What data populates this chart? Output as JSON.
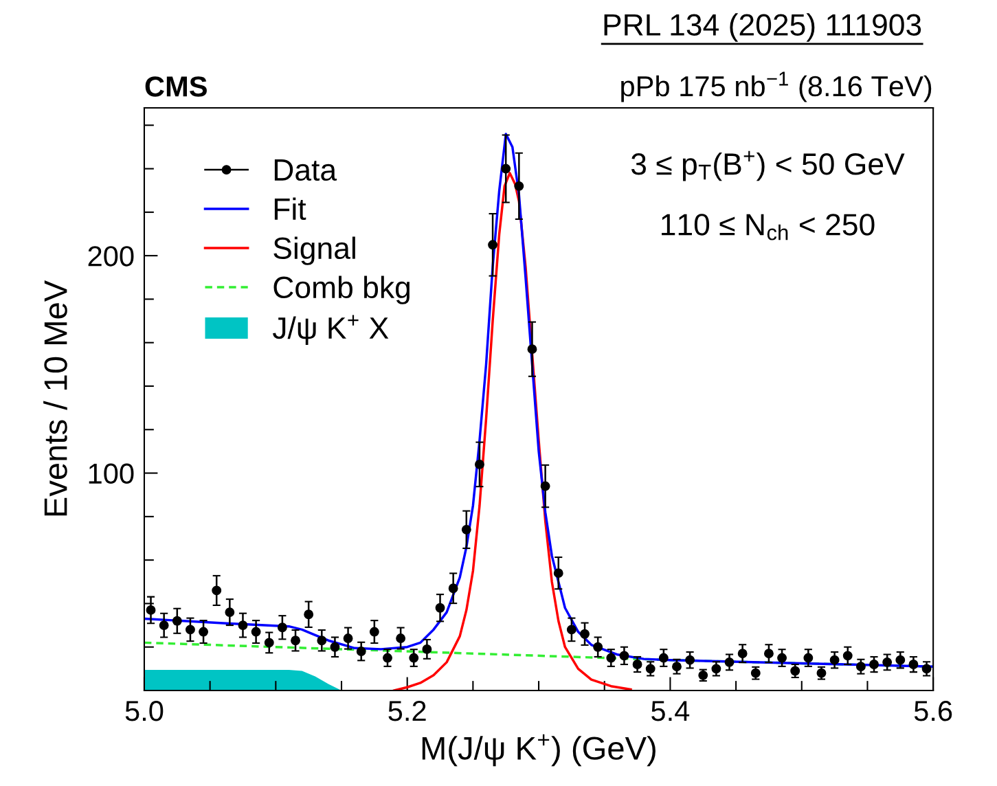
{
  "chart_data": {
    "type": "scatter",
    "title": "CMS",
    "subtitle": "pPb 175 nb$^{−1}$ (8.16 TeV)",
    "xlabel": "M(J/ψ K$^{+}$) (GeV)",
    "ylabel": "Events / 10 MeV",
    "annotations": [
      "PRL 134 (2025) 111903",
      "3 ≤ p$_{T}$(B$^{+}$) < 50 GeV",
      "110 ≤ N$_{ch}$ < 250"
    ],
    "xlim": [
      5.0,
      5.6
    ],
    "ylim": [
      0,
      268
    ],
    "xticks": [
      {
        "value": 5.0,
        "label": "5.0"
      },
      {
        "value": 5.05,
        "label": null
      },
      {
        "value": 5.1,
        "label": null
      },
      {
        "value": 5.15,
        "label": null
      },
      {
        "value": 5.2,
        "label": "5.2"
      },
      {
        "value": 5.25,
        "label": null
      },
      {
        "value": 5.3,
        "label": null
      },
      {
        "value": 5.35,
        "label": null
      },
      {
        "value": 5.4,
        "label": "5.4"
      },
      {
        "value": 5.45,
        "label": null
      },
      {
        "value": 5.5,
        "label": null
      },
      {
        "value": 5.55,
        "label": null
      },
      {
        "value": 5.6,
        "label": "5.6"
      }
    ],
    "yticks": [
      {
        "value": 20,
        "label": null
      },
      {
        "value": 40,
        "label": null
      },
      {
        "value": 60,
        "label": null
      },
      {
        "value": 80,
        "label": null
      },
      100,
      {
        "value": 120,
        "label": null
      },
      {
        "value": 140,
        "label": null
      },
      {
        "value": 160,
        "label": null
      },
      {
        "value": 180,
        "label": null
      },
      200,
      {
        "value": 220,
        "label": null
      },
      {
        "value": 240,
        "label": null
      },
      {
        "value": 260,
        "label": null
      }
    ],
    "grid": false,
    "legend": "top left",
    "series": [
      {
        "name": "J/ψ K$^{+}$ X",
        "type": "area",
        "color": "#00c4c4",
        "x": [
          5.0,
          5.05,
          5.1,
          5.11,
          5.12,
          5.13,
          5.14,
          5.15
        ],
        "values": [
          9.5,
          9.5,
          9.5,
          9.5,
          9,
          6.5,
          3,
          0
        ]
      },
      {
        "name": "Comb bkg",
        "type": "line",
        "color": "#33ee33",
        "line_style": "dashed",
        "x": [
          5.0,
          5.2,
          5.4,
          5.6
        ],
        "values": [
          22,
          18,
          14,
          11
        ]
      },
      {
        "name": "Signal",
        "type": "line",
        "color": "#ff0000",
        "x": [
          5.19,
          5.2,
          5.21,
          5.22,
          5.23,
          5.24,
          5.245,
          5.25,
          5.255,
          5.26,
          5.265,
          5.27,
          5.274,
          5.278,
          5.282,
          5.285,
          5.29,
          5.295,
          5.3,
          5.305,
          5.31,
          5.315,
          5.32,
          5.33,
          5.34,
          5.355,
          5.37
        ],
        "values": [
          0,
          1.5,
          3.5,
          7,
          13,
          25,
          37,
          55,
          85,
          125,
          170,
          210,
          232,
          238,
          233,
          225,
          195,
          155,
          115,
          78,
          50,
          32,
          20,
          10,
          5,
          2,
          0.5
        ]
      },
      {
        "name": "Fit",
        "type": "line",
        "color": "#0000ff",
        "x": [
          5.0,
          5.06,
          5.11,
          5.12,
          5.13,
          5.14,
          5.16,
          5.18,
          5.2,
          5.21,
          5.22,
          5.23,
          5.24,
          5.245,
          5.25,
          5.255,
          5.26,
          5.265,
          5.27,
          5.275,
          5.28,
          5.285,
          5.29,
          5.295,
          5.3,
          5.305,
          5.31,
          5.32,
          5.33,
          5.34,
          5.36,
          5.38,
          5.4,
          5.5,
          5.6
        ],
        "values": [
          33,
          31,
          29.5,
          28,
          25.5,
          23,
          19.5,
          19,
          20,
          22,
          28,
          36,
          52,
          66,
          85,
          115,
          150,
          195,
          230,
          256,
          250,
          228,
          190,
          150,
          110,
          82,
          62,
          38,
          27,
          21,
          16.5,
          14.5,
          14,
          12.5,
          11
        ]
      },
      {
        "name": "Data",
        "color": "#000000",
        "marker": "circle",
        "x": [
          5.005,
          5.015,
          5.025,
          5.035,
          5.045,
          5.055,
          5.065,
          5.075,
          5.085,
          5.095,
          5.105,
          5.115,
          5.125,
          5.135,
          5.145,
          5.155,
          5.165,
          5.175,
          5.185,
          5.195,
          5.205,
          5.215,
          5.225,
          5.235,
          5.245,
          5.255,
          5.265,
          5.275,
          5.285,
          5.295,
          5.305,
          5.315,
          5.325,
          5.335,
          5.345,
          5.355,
          5.365,
          5.375,
          5.385,
          5.395,
          5.405,
          5.415,
          5.425,
          5.435,
          5.445,
          5.455,
          5.465,
          5.475,
          5.485,
          5.495,
          5.505,
          5.515,
          5.525,
          5.535,
          5.545,
          5.555,
          5.565,
          5.575,
          5.585,
          5.595
        ],
        "values": [
          37,
          30,
          32,
          28,
          27,
          46,
          36,
          30,
          27,
          22,
          29,
          23,
          35,
          23,
          20,
          24,
          18,
          27,
          15,
          24,
          15,
          19,
          38,
          47,
          74,
          104,
          205,
          240,
          232,
          157,
          94,
          54,
          28,
          26,
          20,
          15,
          16,
          12,
          10,
          15,
          11,
          14,
          7,
          10,
          13,
          17,
          8,
          17,
          15,
          9,
          15,
          8,
          14,
          16,
          11,
          12,
          13,
          14,
          12,
          10
        ],
        "errors": [
          6.1,
          5.5,
          5.7,
          5.3,
          5.2,
          6.8,
          6.0,
          5.5,
          5.2,
          4.7,
          5.4,
          4.8,
          5.9,
          4.8,
          4.5,
          4.9,
          4.2,
          5.2,
          3.9,
          4.9,
          3.9,
          4.4,
          6.2,
          6.9,
          8.6,
          10.2,
          14.3,
          15.5,
          15.2,
          12.5,
          9.7,
          7.3,
          5.3,
          5.1,
          4.5,
          3.9,
          4.0,
          3.5,
          3.2,
          3.9,
          3.3,
          3.7,
          2.6,
          3.2,
          3.6,
          4.1,
          2.8,
          4.1,
          3.9,
          3.0,
          3.9,
          2.8,
          3.7,
          4.0,
          3.3,
          3.5,
          3.6,
          3.7,
          3.5,
          3.2
        ]
      }
    ]
  }
}
